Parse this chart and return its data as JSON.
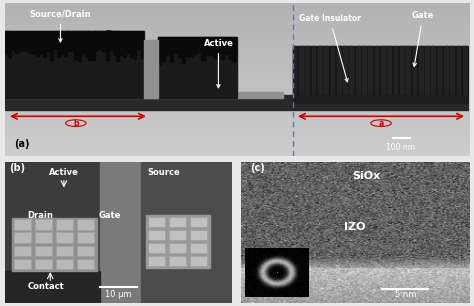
{
  "fig_width": 4.74,
  "fig_height": 3.06,
  "dpi": 100,
  "bg_color": "#e8e8e8",
  "panel_a": {
    "bg_gray": 0.78,
    "substrate_gray": 0.18,
    "active_layer_gray": 0.72,
    "electrode_gray": 0.12,
    "blue_line_color": "#5577cc",
    "red_arrow_color": "#cc0000",
    "label_a_text": "(a)",
    "scale_bar_text": "100 nm",
    "source_drain_text": "Source/Drain",
    "active_text": "Active",
    "gate_ins_text": "Gate Insulator",
    "gate_text": "Gate",
    "b_circle_label": "b",
    "a_circle_label": "a"
  },
  "panel_b": {
    "bg_dark_gray": "#3a3a3a",
    "bg_mid_gray": "#525252",
    "bg_light_gray": "#8a8a8a",
    "bg_source_gray": "#5a5a5a",
    "pad_color": "#b8b8b8",
    "pad_border": "#c8c8c8",
    "contact_dark": "#252525",
    "labels": {
      "b_label": "(b)",
      "active": "Active",
      "drain": "Drain",
      "gate": "Gate",
      "source": "Source",
      "contact": "Contact",
      "scale": "10 μm"
    }
  },
  "panel_c": {
    "siox_gray_bright": 0.72,
    "izo_gray_dark": 0.38,
    "inset_bg": "#101010",
    "labels": {
      "c_label": "(c)",
      "siox": "SiOx",
      "izo": "IZO",
      "scale": "5 nm"
    }
  }
}
